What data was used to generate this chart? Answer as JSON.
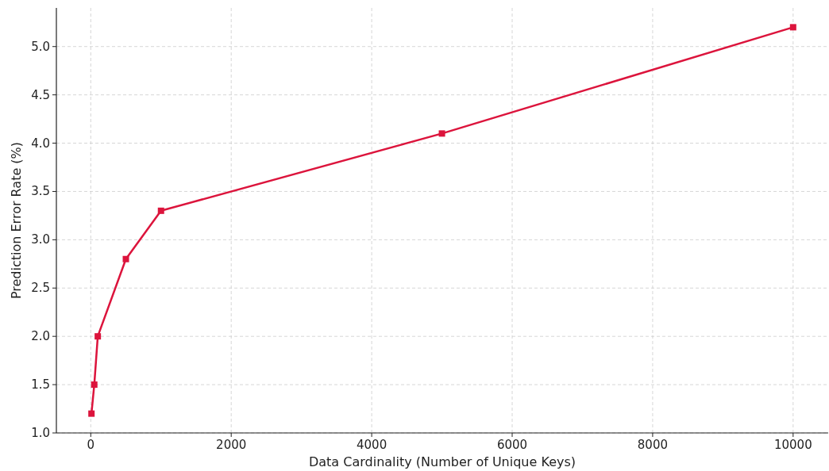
{
  "chart_data": {
    "type": "line",
    "xlabel": "Data Cardinality (Number of Unique Keys)",
    "ylabel": "Prediction Error Rate (%)",
    "x": [
      10,
      50,
      100,
      500,
      1000,
      5000,
      10000
    ],
    "series": [
      {
        "color": "#dc143c",
        "values": [
          1.2,
          1.5,
          2.0,
          2.8,
          3.3,
          4.1,
          5.2
        ]
      }
    ],
    "xlim": [
      -489.5,
      10499.5
    ],
    "xticks": [
      0,
      2000,
      4000,
      6000,
      8000,
      10000
    ],
    "ylim": [
      1.0,
      5.4
    ],
    "yticks": [
      {
        "value": 1.0,
        "label": "1.0"
      },
      {
        "value": 1.5,
        "label": "1.5"
      },
      {
        "value": 2.0,
        "label": "2.0"
      },
      {
        "value": 2.5,
        "label": "2.5"
      },
      {
        "value": 3.0,
        "label": "3.0"
      },
      {
        "value": 3.5,
        "label": "3.5"
      },
      {
        "value": 4.0,
        "label": "4.0"
      },
      {
        "value": 4.5,
        "label": "4.5"
      },
      {
        "value": 5.0,
        "label": "5.0"
      }
    ],
    "grid": true,
    "marker": "square",
    "line_style": "solid"
  }
}
